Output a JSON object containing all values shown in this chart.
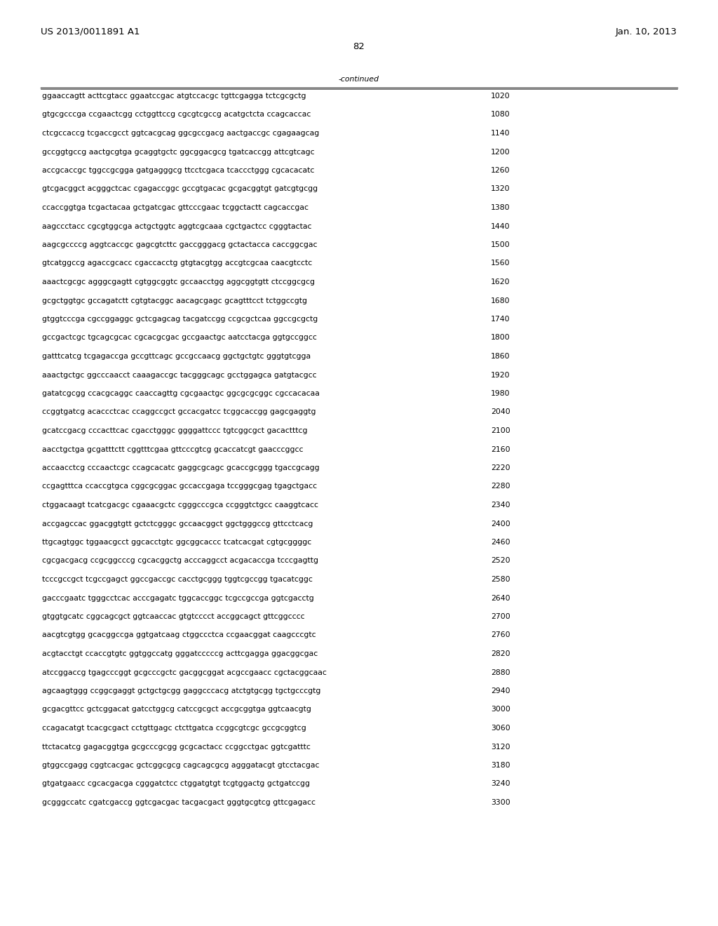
{
  "patent_number": "US 2013/0011891 A1",
  "date": "Jan. 10, 2013",
  "page_number": "82",
  "continued_label": "-continued",
  "background_color": "#ffffff",
  "text_color": "#000000",
  "font_size_header": 9.5,
  "font_size_body": 7.8,
  "sequence_lines": [
    [
      "ggaaccagtt acttcgtacc ggaatccgac atgtccacgc tgttcgagga tctcgcgctg",
      "1020"
    ],
    [
      "gtgcgcccga ccgaactcgg cctggttccg cgcgtcgccg acatgctcta ccagcaccac",
      "1080"
    ],
    [
      "ctcgccaccg tcgaccgcct ggtcacgcag ggcgccgacg aactgaccgc cgagaagcag",
      "1140"
    ],
    [
      "gccggtgccg aactgcgtga gcaggtgctc ggcggacgcg tgatcaccgg attcgtcagc",
      "1200"
    ],
    [
      "accgcaccgc tggccgcgga gatgagggcg ttcctcgaca tcaccctggg cgcacacatc",
      "1260"
    ],
    [
      "gtcgacggct acgggctcac cgagaccggc gccgtgacac gcgacggtgt gatcgtgcgg",
      "1320"
    ],
    [
      "ccaccggtga tcgactacaa gctgatcgac gttcccgaac tcggctactt cagcaccgac",
      "1380"
    ],
    [
      "aagccctacc cgcgtggcga actgctggtc aggtcgcaaa cgctgactcc cgggtactac",
      "1440"
    ],
    [
      "aagcgccccg aggtcaccgc gagcgtcttc gaccgggacg gctactacca caccggcgac",
      "1500"
    ],
    [
      "gtcatggccg agaccgcacc cgaccacctg gtgtacgtgg accgtcgcaa caacgtcctc",
      "1560"
    ],
    [
      "aaactcgcgc agggcgagtt cgtggcggtc gccaacctgg aggcggtgtt ctccggcgcg",
      "1620"
    ],
    [
      "gcgctggtgc gccagatctt cgtgtacggc aacagcgagc gcagtttcct tctggccgtg",
      "1680"
    ],
    [
      "gtggtcccga cgccggaggc gctcgagcag tacgatccgg ccgcgctcaa ggccgcgctg",
      "1740"
    ],
    [
      "gccgactcgc tgcagcgcac cgcacgcgac gccgaactgc aatcctacga ggtgccggcc",
      "1800"
    ],
    [
      "gatttcatcg tcgagaccga gccgttcagc gccgccaacg ggctgctgtc gggtgtcgga",
      "1860"
    ],
    [
      "aaactgctgc ggcccaacct caaagaccgc tacgggcagc gcctggagca gatgtacgcc",
      "1920"
    ],
    [
      "gatatcgcgg ccacgcaggc caaccagttg cgcgaactgc ggcgcgcggc cgccacacaa",
      "1980"
    ],
    [
      "ccggtgatcg acaccctcac ccaggccgct gccacgatcc tcggcaccgg gagcgaggtg",
      "2040"
    ],
    [
      "gcatccgacg cccacttcac cgacctgggc ggggattccc tgtcggcgct gacactttcg",
      "2100"
    ],
    [
      "aacctgctga gcgatttctt cggtttcgaa gttcccgtcg gcaccatcgt gaacccggcc",
      "2160"
    ],
    [
      "accaacctcg cccaactcgc ccagcacatc gaggcgcagc gcaccgcggg tgaccgcagg",
      "2220"
    ],
    [
      "ccgagtttca ccaccgtgca cggcgcggac gccaccgaga tccgggcgag tgagctgacc",
      "2280"
    ],
    [
      "ctggacaagt tcatcgacgc cgaaacgctc cgggcccgca ccgggtctgcc caaggtcacc",
      "2340"
    ],
    [
      "accgagccac ggacggtgtt gctctcgggc gccaacggct ggctgggccg gttcctcacg",
      "2400"
    ],
    [
      "ttgcagtggc tggaacgcct ggcacctgtc ggcggcaccc tcatcacgat cgtgcggggc",
      "2460"
    ],
    [
      "cgcgacgacg ccgcggcccg cgcacggctg acccaggcct acgacaccga tcccgagttg",
      "2520"
    ],
    [
      "tcccgccgct tcgccgagct ggccgaccgc cacctgcggg tggtcgccgg tgacatcggc",
      "2580"
    ],
    [
      "gacccgaatc tgggcctcac acccgagatc tggcaccggc tcgccgccga ggtcgacctg",
      "2640"
    ],
    [
      "gtggtgcatc cggcagcgct ggtcaaccac gtgtcccct accggcagct gttcggcccc",
      "2700"
    ],
    [
      "aacgtcgtgg gcacggccga ggtgatcaag ctggccctca ccgaacggat caagcccgtc",
      "2760"
    ],
    [
      "acgtacctgt ccaccgtgtc ggtggccatg gggatcccccg acttcgagga ggacggcgac",
      "2820"
    ],
    [
      "atccggaccg tgagcccggt gcgcccgctc gacggcggat acgccgaacc cgctacggcaac",
      "2880"
    ],
    [
      "agcaagtggg ccggcgaggt gctgctgcgg gaggcccacg atctgtgcgg tgctgcccgtg",
      "2940"
    ],
    [
      "gcgacgttcc gctcggacat gatcctggcg catccgcgct accgcggtga ggtcaacgtg",
      "3000"
    ],
    [
      "ccagacatgt tcacgcgact cctgttgagc ctcttgatca ccggcgtcgc gccgcggtcg",
      "3060"
    ],
    [
      "ttctacatcg gagacggtga gcgcccgcgg gcgcactacc ccggcctgac ggtcgatttc",
      "3120"
    ],
    [
      "gtggccgagg cggtcacgac gctcggcgcg cagcagcgcg agggatacgt gtcctacgac",
      "3180"
    ],
    [
      "gtgatgaacc cgcacgacga cgggatctcc ctggatgtgt tcgtggactg gctgatccgg",
      "3240"
    ],
    [
      "gcgggccatc cgatcgaccg ggtcgacgac tacgacgact gggtgcgtcg gttcgagacc",
      "3300"
    ]
  ]
}
